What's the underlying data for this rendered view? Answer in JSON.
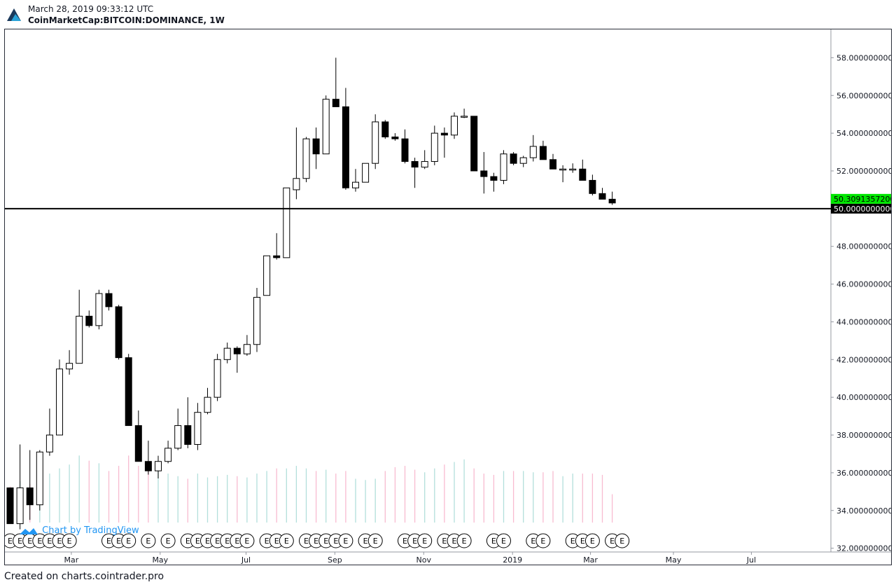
{
  "header": {
    "datetime": "March 28, 2019 09:33:12 UTC",
    "symbol": "CoinMarketCap:BITCOIN:DOMINANCE, 1W",
    "logo_icon": "cointrader-logo-icon"
  },
  "footer": {
    "text": "Created on charts.cointrader.pro"
  },
  "watermark": {
    "text": "Chart by TradingView",
    "icon": "tradingview-cloud-icon"
  },
  "colors": {
    "up_fill": "#ffffff",
    "down_fill": "#000000",
    "wick": "#000000",
    "vol_up": "#b2dfdb",
    "vol_down": "#f8bbd0",
    "price_tag": "#00e600",
    "line_tag": "#000000"
  },
  "chart_data": {
    "type": "candlestick",
    "interval": "1W",
    "ylim": [
      31.8,
      59.5
    ],
    "y_ticks": [
      "58.0000000000",
      "56.0000000000",
      "54.0000000000",
      "52.0000000000",
      "50.0000000000",
      "48.0000000000",
      "46.0000000000",
      "44.0000000000",
      "42.0000000000",
      "40.0000000000",
      "38.0000000000",
      "36.0000000000",
      "34.0000000000",
      "32.0000000000"
    ],
    "x_ticks": [
      {
        "label": "Mar",
        "index": 6.2
      },
      {
        "label": "May",
        "index": 15.2
      },
      {
        "label": "Jul",
        "index": 23.9
      },
      {
        "label": "Sep",
        "index": 32.9
      },
      {
        "label": "Nov",
        "index": 41.9
      },
      {
        "label": "2019",
        "index": 50.9
      },
      {
        "label": "Mar",
        "index": 58.8
      },
      {
        "label": "May",
        "index": 67.2
      },
      {
        "label": "Jul",
        "index": 75.1
      }
    ],
    "horizontal_line": {
      "value": 50.0,
      "label": "50.0000000000"
    },
    "last_price": {
      "value": 50.30913572,
      "label": "50.3091357200"
    },
    "candles": [
      {
        "o": 35.2,
        "h": 35.2,
        "l": 33.3,
        "c": 33.3
      },
      {
        "o": 33.3,
        "h": 37.5,
        "l": 33.0,
        "c": 35.2
      },
      {
        "o": 35.2,
        "h": 37.2,
        "l": 33.5,
        "c": 34.3
      },
      {
        "o": 34.3,
        "h": 37.2,
        "l": 34.0,
        "c": 37.1
      },
      {
        "o": 37.1,
        "h": 39.4,
        "l": 36.9,
        "c": 38.0
      },
      {
        "o": 38.0,
        "h": 42.0,
        "l": 38.0,
        "c": 41.5
      },
      {
        "o": 41.5,
        "h": 42.5,
        "l": 41.2,
        "c": 41.8
      },
      {
        "o": 41.8,
        "h": 45.7,
        "l": 41.8,
        "c": 44.3
      },
      {
        "o": 44.3,
        "h": 44.6,
        "l": 43.7,
        "c": 43.8
      },
      {
        "o": 43.8,
        "h": 45.7,
        "l": 43.6,
        "c": 45.5
      },
      {
        "o": 45.5,
        "h": 45.7,
        "l": 44.6,
        "c": 44.8
      },
      {
        "o": 44.8,
        "h": 44.9,
        "l": 42.0,
        "c": 42.1
      },
      {
        "o": 42.1,
        "h": 42.3,
        "l": 38.5,
        "c": 38.5
      },
      {
        "o": 38.5,
        "h": 39.3,
        "l": 36.6,
        "c": 36.6
      },
      {
        "o": 36.6,
        "h": 37.7,
        "l": 35.9,
        "c": 36.1
      },
      {
        "o": 36.1,
        "h": 36.9,
        "l": 35.7,
        "c": 36.6
      },
      {
        "o": 36.6,
        "h": 37.7,
        "l": 36.5,
        "c": 37.3
      },
      {
        "o": 37.3,
        "h": 39.4,
        "l": 37.2,
        "c": 38.5
      },
      {
        "o": 38.5,
        "h": 40.0,
        "l": 37.3,
        "c": 37.5
      },
      {
        "o": 37.5,
        "h": 39.7,
        "l": 37.2,
        "c": 39.2
      },
      {
        "o": 39.2,
        "h": 40.5,
        "l": 39.1,
        "c": 40.0
      },
      {
        "o": 40.0,
        "h": 42.3,
        "l": 39.8,
        "c": 42.0
      },
      {
        "o": 42.0,
        "h": 42.9,
        "l": 41.8,
        "c": 42.6
      },
      {
        "o": 42.6,
        "h": 42.7,
        "l": 41.3,
        "c": 42.3
      },
      {
        "o": 42.3,
        "h": 43.3,
        "l": 42.2,
        "c": 42.8
      },
      {
        "o": 42.8,
        "h": 45.8,
        "l": 42.4,
        "c": 45.3
      },
      {
        "o": 45.4,
        "h": 47.4,
        "l": 45.4,
        "c": 47.5
      },
      {
        "o": 47.5,
        "h": 48.7,
        "l": 47.3,
        "c": 47.4
      },
      {
        "o": 47.4,
        "h": 51.1,
        "l": 47.4,
        "c": 51.1
      },
      {
        "o": 51.0,
        "h": 54.3,
        "l": 50.5,
        "c": 51.6
      },
      {
        "o": 51.6,
        "h": 53.8,
        "l": 51.4,
        "c": 53.7
      },
      {
        "o": 53.7,
        "h": 54.3,
        "l": 52.1,
        "c": 52.9
      },
      {
        "o": 52.9,
        "h": 56.0,
        "l": 52.9,
        "c": 55.8
      },
      {
        "o": 55.8,
        "h": 58.0,
        "l": 55.4,
        "c": 55.4
      },
      {
        "o": 55.4,
        "h": 56.4,
        "l": 51.0,
        "c": 51.1
      },
      {
        "o": 51.1,
        "h": 52.1,
        "l": 50.9,
        "c": 51.4
      },
      {
        "o": 51.4,
        "h": 52.4,
        "l": 51.4,
        "c": 52.4
      },
      {
        "o": 52.4,
        "h": 55.0,
        "l": 52.1,
        "c": 54.6
      },
      {
        "o": 54.6,
        "h": 54.7,
        "l": 53.7,
        "c": 53.8
      },
      {
        "o": 53.8,
        "h": 54.0,
        "l": 53.6,
        "c": 53.7
      },
      {
        "o": 53.7,
        "h": 54.2,
        "l": 52.4,
        "c": 52.5
      },
      {
        "o": 52.5,
        "h": 52.7,
        "l": 51.1,
        "c": 52.2
      },
      {
        "o": 52.2,
        "h": 53.1,
        "l": 52.1,
        "c": 52.5
      },
      {
        "o": 52.5,
        "h": 54.4,
        "l": 52.3,
        "c": 54.0
      },
      {
        "o": 54.0,
        "h": 54.3,
        "l": 52.7,
        "c": 53.9
      },
      {
        "o": 53.9,
        "h": 55.1,
        "l": 53.7,
        "c": 54.9
      },
      {
        "o": 54.9,
        "h": 55.3,
        "l": 54.8,
        "c": 54.9
      },
      {
        "o": 54.9,
        "h": 54.9,
        "l": 52.0,
        "c": 52.0
      },
      {
        "o": 52.0,
        "h": 53.0,
        "l": 50.8,
        "c": 51.7
      },
      {
        "o": 51.7,
        "h": 51.9,
        "l": 50.9,
        "c": 51.5
      },
      {
        "o": 51.5,
        "h": 53.1,
        "l": 51.3,
        "c": 52.9
      },
      {
        "o": 52.9,
        "h": 53.0,
        "l": 52.3,
        "c": 52.4
      },
      {
        "o": 52.4,
        "h": 52.8,
        "l": 52.2,
        "c": 52.7
      },
      {
        "o": 52.7,
        "h": 53.9,
        "l": 52.5,
        "c": 53.3
      },
      {
        "o": 53.3,
        "h": 53.6,
        "l": 52.6,
        "c": 52.6
      },
      {
        "o": 52.6,
        "h": 52.9,
        "l": 52.1,
        "c": 52.1
      },
      {
        "o": 52.1,
        "h": 52.3,
        "l": 51.4,
        "c": 52.1
      },
      {
        "o": 52.1,
        "h": 52.4,
        "l": 51.9,
        "c": 52.1
      },
      {
        "o": 52.1,
        "h": 52.6,
        "l": 51.5,
        "c": 51.5
      },
      {
        "o": 51.5,
        "h": 51.8,
        "l": 50.7,
        "c": 50.8
      },
      {
        "o": 50.8,
        "h": 51.1,
        "l": 50.5,
        "c": 50.5
      },
      {
        "o": 50.5,
        "h": 50.9,
        "l": 50.2,
        "c": 50.3
      }
    ],
    "volume": {
      "scale_max": 100,
      "values": [
        28,
        32,
        30,
        35,
        38,
        42,
        45,
        52,
        48,
        46,
        40,
        44,
        52,
        44,
        46,
        42,
        38,
        36,
        34,
        38,
        35,
        36,
        37,
        36,
        35,
        38,
        40,
        42,
        42,
        44,
        42,
        40,
        41,
        38,
        40,
        34,
        33,
        34,
        40,
        43,
        44,
        41,
        39,
        42,
        45,
        47,
        49,
        42,
        38,
        37,
        40,
        40,
        40,
        39,
        39,
        40,
        36,
        38,
        38,
        38,
        37,
        22
      ]
    },
    "earnings_markers": {
      "label": "E",
      "indices": [
        0,
        1,
        2,
        3,
        4,
        5,
        6,
        10,
        11,
        12,
        14,
        16,
        18,
        19,
        20,
        21,
        22,
        23,
        24,
        26,
        27,
        28,
        30,
        31,
        32,
        33,
        34,
        36,
        37,
        40,
        41,
        42,
        44,
        45,
        46,
        49,
        50,
        53,
        54,
        57,
        58,
        59,
        61,
        62
      ]
    }
  }
}
